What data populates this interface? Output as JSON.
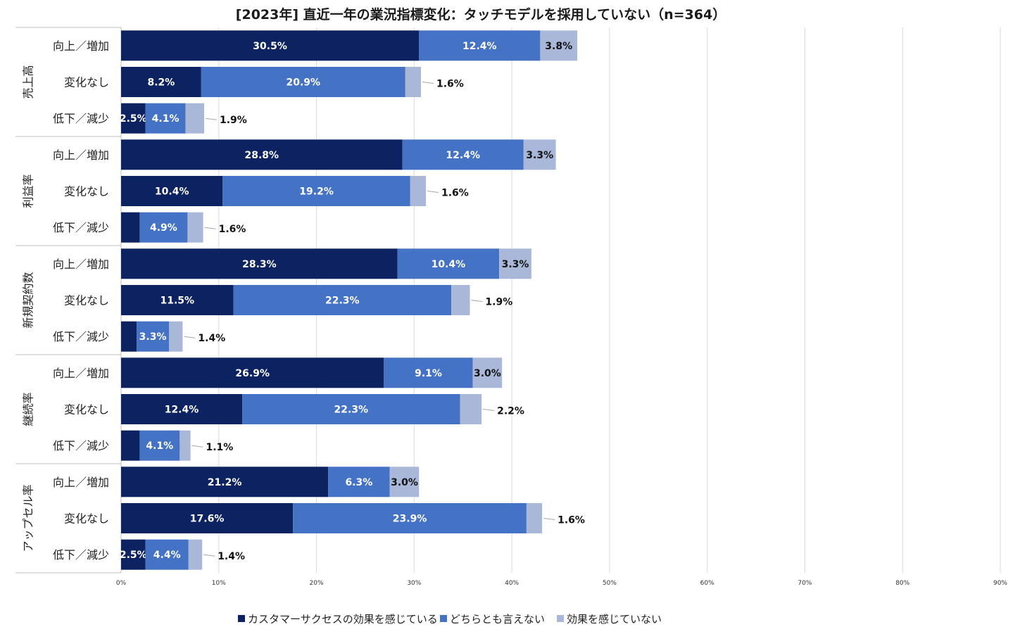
{
  "chart_data": {
    "type": "bar",
    "orientation": "horizontal",
    "stacked": true,
    "title": "[2023年] 直近一年の業況指標変化：タッチモデルを採用していない（n=364）",
    "xlim": [
      0,
      90
    ],
    "x_ticks": [
      "0%",
      "10%",
      "20%",
      "30%",
      "40%",
      "50%",
      "60%",
      "70%",
      "80%",
      "90%"
    ],
    "grid": true,
    "legend_position": "bottom",
    "colors": [
      "#0d2260",
      "#4472c4",
      "#a9b8d9"
    ],
    "series_names": [
      "カスタマーサクセスの効果を感じている",
      "どちらとも言えない",
      "効果を感じていない"
    ],
    "groups": [
      {
        "label": "売上高",
        "rows": [
          {
            "label": "向上／増加",
            "values": [
              30.5,
              12.4,
              3.8
            ],
            "labels": [
              "30.5%",
              "12.4%",
              "3.8%"
            ]
          },
          {
            "label": "変化なし",
            "values": [
              8.2,
              20.9,
              1.6
            ],
            "labels": [
              "8.2%",
              "20.9%",
              "1.6%"
            ]
          },
          {
            "label": "低下／減少",
            "values": [
              2.5,
              4.1,
              1.9
            ],
            "labels": [
              "2.5%",
              "4.1%",
              "1.9%"
            ]
          }
        ]
      },
      {
        "label": "利益率",
        "rows": [
          {
            "label": "向上／増加",
            "values": [
              28.8,
              12.4,
              3.3
            ],
            "labels": [
              "28.8%",
              "12.4%",
              "3.3%"
            ]
          },
          {
            "label": "変化なし",
            "values": [
              10.4,
              19.2,
              1.6
            ],
            "labels": [
              "10.4%",
              "19.2%",
              "1.6%"
            ]
          },
          {
            "label": "低下／減少",
            "values": [
              1.9,
              4.9,
              1.6
            ],
            "labels": [
              "1.9%",
              "4.9%",
              "1.6%"
            ]
          }
        ]
      },
      {
        "label": "新規契約数",
        "rows": [
          {
            "label": "向上／増加",
            "values": [
              28.3,
              10.4,
              3.3
            ],
            "labels": [
              "28.3%",
              "10.4%",
              "3.3%"
            ]
          },
          {
            "label": "変化なし",
            "values": [
              11.5,
              22.3,
              1.9
            ],
            "labels": [
              "11.5%",
              "22.3%",
              "1.9%"
            ]
          },
          {
            "label": "低下／減少",
            "values": [
              1.6,
              3.3,
              1.4
            ],
            "labels": [
              "1.6%",
              "3.3%",
              "1.4%"
            ]
          }
        ]
      },
      {
        "label": "継続率",
        "rows": [
          {
            "label": "向上／増加",
            "values": [
              26.9,
              9.1,
              3.0
            ],
            "labels": [
              "26.9%",
              "9.1%",
              "3.0%"
            ]
          },
          {
            "label": "変化なし",
            "values": [
              12.4,
              22.3,
              2.2
            ],
            "labels": [
              "12.4%",
              "22.3%",
              "2.2%"
            ]
          },
          {
            "label": "低下／減少",
            "values": [
              1.9,
              4.1,
              1.1
            ],
            "labels": [
              "1.9%",
              "4.1%",
              "1.1%"
            ]
          }
        ]
      },
      {
        "label": "アップセル率",
        "rows": [
          {
            "label": "向上／増加",
            "values": [
              21.2,
              6.3,
              3.0
            ],
            "labels": [
              "21.2%",
              "6.3%",
              "3.0%"
            ]
          },
          {
            "label": "変化なし",
            "values": [
              17.6,
              23.9,
              1.6
            ],
            "labels": [
              "17.6%",
              "23.9%",
              "1.6%"
            ]
          },
          {
            "label": "低下／減少",
            "values": [
              2.5,
              4.4,
              1.4
            ],
            "labels": [
              "2.5%",
              "4.4%",
              "1.4%"
            ]
          }
        ]
      }
    ]
  }
}
